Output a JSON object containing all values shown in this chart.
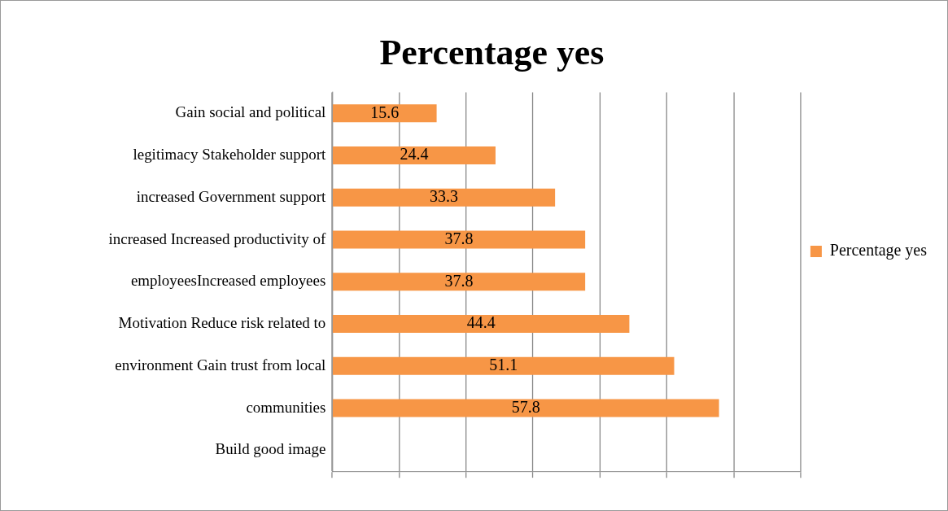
{
  "chart_data": {
    "type": "bar",
    "orientation": "horizontal",
    "title": "Percentage yes",
    "categories": [
      "Gain social and political",
      "legitimacy Stakeholder support",
      "increased Government support",
      "increased Increased productivity of",
      "employeesIncreased employees",
      "Motivation Reduce risk related to",
      "environment Gain trust from local",
      "communities",
      "Build good image"
    ],
    "series": [
      {
        "name": "Percentage yes",
        "color": "#f79646",
        "values": [
          15.6,
          24.4,
          33.3,
          37.8,
          37.8,
          44.4,
          51.1,
          57.8,
          null
        ]
      }
    ],
    "xlim": [
      0,
      70
    ],
    "xticks": [
      {
        "value": 0,
        "label": null
      },
      {
        "value": 10,
        "label": null
      },
      {
        "value": 20,
        "label": null
      },
      {
        "value": 30,
        "label": null
      },
      {
        "value": 40,
        "label": null
      },
      {
        "value": 50,
        "label": null
      },
      {
        "value": 60,
        "label": null
      },
      {
        "value": 70,
        "label": null
      }
    ],
    "tick_labels": "y",
    "grid": "x",
    "legend": "right",
    "data_labels": true
  }
}
